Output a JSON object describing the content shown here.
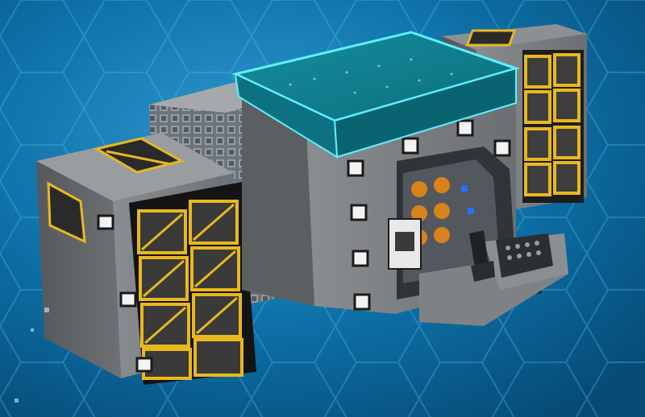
{
  "scene": {
    "background_color": "#0b6a9e",
    "hex_line_color": "#3aa6d6",
    "hull_color": "#7a7d80",
    "hull_dark": "#4a4d50",
    "roof_color": "#0e7d8c",
    "roof_edge_glow": "#5ff0ff",
    "stripe_yellow": "#e8b81f",
    "window_white": "#f2f2f2",
    "accent_blue": "#2d6bff"
  },
  "objects": {
    "viewport": "game-viewport",
    "ship": "modular-space-station",
    "modules": [
      "left-cargo-module",
      "central-core-module",
      "right-cargo-module",
      "cockpit-module",
      "pilot-seat"
    ]
  }
}
